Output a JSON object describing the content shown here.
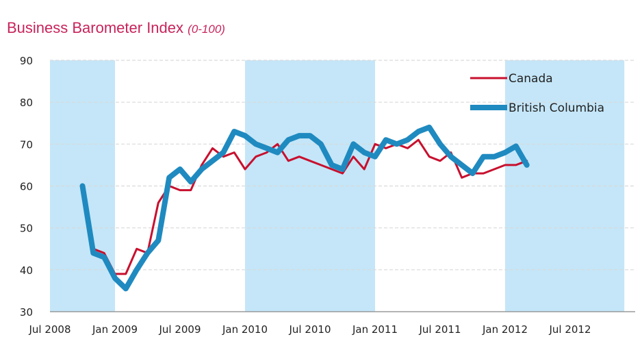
{
  "chart_data": {
    "type": "line",
    "title": "Business Barometer Index",
    "subtitle": "(0-100)",
    "xlabel": "",
    "ylabel": "",
    "ylim": [
      30,
      90
    ],
    "yticks": [
      30,
      40,
      50,
      60,
      70,
      80,
      90
    ],
    "xticks": [
      "Jul 2008",
      "Jan 2009",
      "Jul 2009",
      "Jan 2010",
      "Jul 2010",
      "Jan 2011",
      "Jul 2011",
      "Jan 2012",
      "Jul 2012"
    ],
    "shaded_periods": [
      [
        "2008-07",
        "2009-01"
      ],
      [
        "2010-01",
        "2011-01"
      ],
      [
        "2012-01",
        "2012-12"
      ]
    ],
    "legend": "top-right",
    "grid": true,
    "series": [
      {
        "name": "Canada",
        "color": "#c8102e",
        "points": [
          [
            "2008-10",
            60
          ],
          [
            "2008-11",
            45
          ],
          [
            "2008-12",
            44
          ],
          [
            "2009-01",
            39
          ],
          [
            "2009-02",
            39
          ],
          [
            "2009-03",
            45
          ],
          [
            "2009-04",
            44
          ],
          [
            "2009-05",
            56
          ],
          [
            "2009-06",
            60
          ],
          [
            "2009-07",
            59
          ],
          [
            "2009-08",
            59
          ],
          [
            "2009-09",
            65
          ],
          [
            "2009-10",
            69
          ],
          [
            "2009-11",
            67
          ],
          [
            "2009-12",
            68
          ],
          [
            "2010-01",
            64
          ],
          [
            "2010-02",
            67
          ],
          [
            "2010-03",
            68
          ],
          [
            "2010-04",
            70
          ],
          [
            "2010-05",
            66
          ],
          [
            "2010-06",
            67
          ],
          [
            "2010-07",
            66
          ],
          [
            "2010-08",
            65
          ],
          [
            "2010-09",
            64
          ],
          [
            "2010-10",
            63
          ],
          [
            "2010-11",
            67
          ],
          [
            "2010-12",
            64
          ],
          [
            "2011-01",
            70
          ],
          [
            "2011-02",
            69
          ],
          [
            "2011-03",
            70
          ],
          [
            "2011-04",
            69
          ],
          [
            "2011-05",
            71
          ],
          [
            "2011-06",
            67
          ],
          [
            "2011-07",
            66
          ],
          [
            "2011-08",
            68
          ],
          [
            "2011-09",
            62
          ],
          [
            "2011-10",
            63
          ],
          [
            "2011-11",
            63
          ],
          [
            "2011-12",
            64
          ],
          [
            "2012-01",
            65
          ],
          [
            "2012-02",
            65
          ],
          [
            "2012-03",
            66
          ]
        ]
      },
      {
        "name": "British Columbia",
        "color": "#1f8ac0",
        "points": [
          [
            "2008-10",
            60
          ],
          [
            "2008-11",
            44
          ],
          [
            "2008-12",
            43
          ],
          [
            "2009-01",
            38
          ],
          [
            "2009-02",
            35.5
          ],
          [
            "2009-03",
            40
          ],
          [
            "2009-04",
            44
          ],
          [
            "2009-05",
            47
          ],
          [
            "2009-06",
            62
          ],
          [
            "2009-07",
            64
          ],
          [
            "2009-08",
            61
          ],
          [
            "2009-09",
            64
          ],
          [
            "2009-10",
            66
          ],
          [
            "2009-11",
            68
          ],
          [
            "2009-12",
            73
          ],
          [
            "2010-01",
            72
          ],
          [
            "2010-02",
            70
          ],
          [
            "2010-03",
            69
          ],
          [
            "2010-04",
            68
          ],
          [
            "2010-05",
            71
          ],
          [
            "2010-06",
            72
          ],
          [
            "2010-07",
            72
          ],
          [
            "2010-08",
            70
          ],
          [
            "2010-09",
            65
          ],
          [
            "2010-10",
            64
          ],
          [
            "2010-11",
            70
          ],
          [
            "2010-12",
            68
          ],
          [
            "2011-01",
            67
          ],
          [
            "2011-02",
            71
          ],
          [
            "2011-03",
            70
          ],
          [
            "2011-04",
            71
          ],
          [
            "2011-05",
            73
          ],
          [
            "2011-06",
            74
          ],
          [
            "2011-07",
            70
          ],
          [
            "2011-08",
            67
          ],
          [
            "2011-09",
            65
          ],
          [
            "2011-10",
            63
          ],
          [
            "2011-11",
            67
          ],
          [
            "2011-12",
            67
          ],
          [
            "2012-01",
            68
          ],
          [
            "2012-02",
            69.5
          ],
          [
            "2012-03",
            65
          ]
        ]
      }
    ]
  }
}
